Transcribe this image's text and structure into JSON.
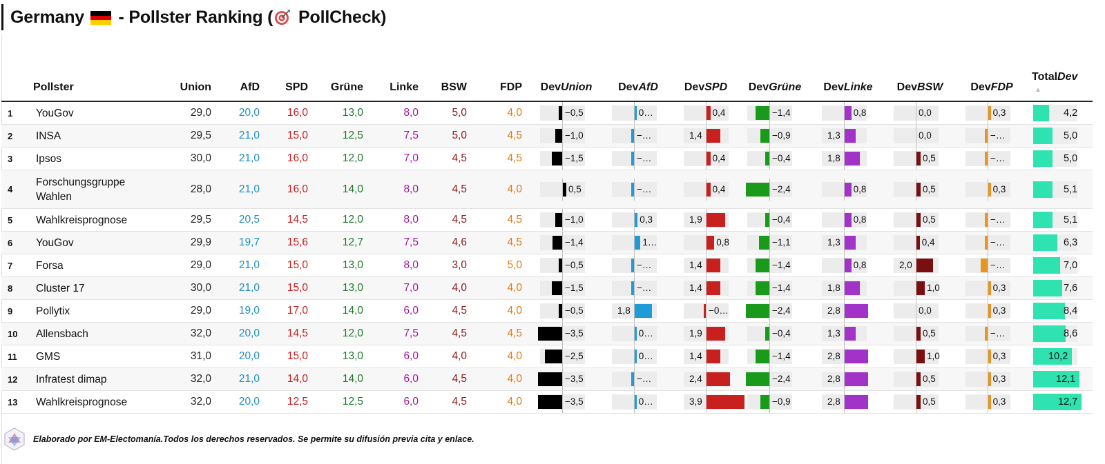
{
  "title": {
    "before": "Germany ",
    "after": " - Pollster Ranking (",
    "brand": " PollCheck)"
  },
  "columns": {
    "pollster": "Pollster",
    "parties": [
      "Union",
      "AfD",
      "SPD",
      "Grüne",
      "Linke",
      "BSW",
      "FDP"
    ],
    "dev_prefix": "Dev",
    "total": "TotalDev",
    "sort_indicator": "▲"
  },
  "colors": {
    "Union": "#000000",
    "AfD": "#1f9bd7",
    "SPD": "#c8201f",
    "Grüne": "#1a9a1a",
    "Linke": "#a233c8",
    "BSW": "#7a0f12",
    "FDP": "#e89421",
    "total": "#2fe3b0",
    "text_Union": "#222222",
    "text_AfD": "#1f8fc4",
    "text_SPD": "#c8201f",
    "text_Grüne": "#1e7a2c",
    "text_Linke": "#a0179f",
    "text_BSW": "#8b1a1a",
    "text_FDP": "#e07a10"
  },
  "rows": [
    {
      "rank": "1",
      "name": "YouGov",
      "values": [
        "29,0",
        "20,0",
        "16,0",
        "13,0",
        "8,0",
        "5,0",
        "4,0"
      ],
      "devs": [
        -0.5,
        0.2,
        0.4,
        -1.4,
        0.8,
        0.0,
        0.3
      ],
      "dev_labels": [
        "−0,5",
        "0…",
        "0,4",
        "−1,4",
        "0,8",
        "0,0",
        "0,3"
      ],
      "total": 4.2,
      "total_label": "4,2"
    },
    {
      "rank": "2",
      "name": "INSA",
      "values": [
        "29,5",
        "21,0",
        "15,0",
        "12,5",
        "7,5",
        "5,0",
        "4,5"
      ],
      "devs": [
        -1.0,
        -0.3,
        1.4,
        -0.9,
        1.3,
        0.0,
        -0.3
      ],
      "dev_labels": [
        "−1,0",
        "−…",
        "1,4",
        "−0,9",
        "1,3",
        "0,0",
        "−…"
      ],
      "total": 5.0,
      "total_label": "5,0"
    },
    {
      "rank": "3",
      "name": "Ipsos",
      "values": [
        "30,0",
        "21,0",
        "16,0",
        "12,0",
        "7,0",
        "4,5",
        "4,5"
      ],
      "devs": [
        -1.5,
        -0.3,
        0.4,
        -0.4,
        1.8,
        0.5,
        -0.3
      ],
      "dev_labels": [
        "−1,5",
        "−…",
        "0,4",
        "−0,4",
        "1,8",
        "0,5",
        "−…"
      ],
      "total": 5.0,
      "total_label": "5,0"
    },
    {
      "rank": "4",
      "name": "Forschungsgruppe Wahlen",
      "values": [
        "28,0",
        "21,0",
        "16,0",
        "14,0",
        "8,0",
        "4,5",
        "4,0"
      ],
      "devs": [
        0.5,
        -0.3,
        0.4,
        -2.4,
        0.8,
        0.5,
        0.3
      ],
      "dev_labels": [
        "0,5",
        "−…",
        "0,4",
        "−2,4",
        "0,8",
        "0,5",
        "0,3"
      ],
      "total": 5.1,
      "total_label": "5,1"
    },
    {
      "rank": "5",
      "name": "Wahlkreisprognose",
      "values": [
        "29,5",
        "20,5",
        "14,5",
        "12,0",
        "8,0",
        "4,5",
        "4,5"
      ],
      "devs": [
        -1.0,
        0.3,
        1.9,
        -0.4,
        0.8,
        0.5,
        -0.3
      ],
      "dev_labels": [
        "−1,0",
        "0,3",
        "1,9",
        "−0,4",
        "0,8",
        "0,5",
        "−…"
      ],
      "total": 5.1,
      "total_label": "5,1"
    },
    {
      "rank": "6",
      "name": "YouGov",
      "values": [
        "29,9",
        "19,7",
        "15,6",
        "12,7",
        "7,5",
        "4,6",
        "4,5"
      ],
      "devs": [
        -1.4,
        0.6,
        0.8,
        -1.1,
        1.3,
        0.4,
        -0.3
      ],
      "dev_labels": [
        "−1,4",
        "1…",
        "0,8",
        "−1,1",
        "1,3",
        "0,4",
        "−…"
      ],
      "total": 6.3,
      "total_label": "6,3"
    },
    {
      "rank": "7",
      "name": "Forsa",
      "values": [
        "29,0",
        "21,0",
        "15,0",
        "13,0",
        "8,0",
        "3,0",
        "5,0"
      ],
      "devs": [
        -0.5,
        -0.3,
        1.4,
        -1.4,
        0.8,
        2.0,
        -0.8
      ],
      "dev_labels": [
        "−0,5",
        "−…",
        "1,4",
        "−1,4",
        "0,8",
        "2,0",
        "−…"
      ],
      "total": 7.0,
      "total_label": "7,0"
    },
    {
      "rank": "8",
      "name": "Cluster 17",
      "values": [
        "30,0",
        "21,0",
        "15,0",
        "13,0",
        "7,0",
        "4,0",
        "4,0"
      ],
      "devs": [
        -1.5,
        -0.3,
        1.4,
        -1.4,
        1.8,
        1.0,
        0.3
      ],
      "dev_labels": [
        "−1,5",
        "−…",
        "1,4",
        "−1,4",
        "1,8",
        "1,0",
        "0,3"
      ],
      "total": 7.6,
      "total_label": "7,6"
    },
    {
      "rank": "9",
      "name": "Pollytix",
      "values": [
        "29,0",
        "19,0",
        "17,0",
        "14,0",
        "6,0",
        "4,5",
        "4,0"
      ],
      "devs": [
        -0.5,
        1.8,
        -0.2,
        -2.4,
        2.8,
        0.0,
        0.3
      ],
      "dev_labels": [
        "−0,5",
        "1,8",
        "−0…",
        "−2,4",
        "2,8",
        "0,0",
        "0,3"
      ],
      "total": 8.4,
      "total_label": "8,4"
    },
    {
      "rank": "10",
      "name": "Allensbach",
      "values": [
        "32,0",
        "20,0",
        "14,5",
        "12,0",
        "7,5",
        "4,5",
        "4,5"
      ],
      "devs": [
        -3.5,
        0.2,
        1.9,
        -0.4,
        1.3,
        0.5,
        -0.3
      ],
      "dev_labels": [
        "−3,5",
        "0…",
        "1,9",
        "−0,4",
        "1,3",
        "0,5",
        "−…"
      ],
      "total": 8.6,
      "total_label": "8,6"
    },
    {
      "rank": "11",
      "name": "GMS",
      "values": [
        "31,0",
        "20,0",
        "15,0",
        "13,0",
        "6,0",
        "4,0",
        "4,0"
      ],
      "devs": [
        -2.5,
        0.2,
        1.4,
        -1.4,
        2.8,
        1.0,
        0.3
      ],
      "dev_labels": [
        "−2,5",
        "0…",
        "1,4",
        "−1,4",
        "2,8",
        "1,0",
        "0,3"
      ],
      "total": 10.2,
      "total_label": "10,2"
    },
    {
      "rank": "12",
      "name": "Infratest dimap",
      "values": [
        "32,0",
        "21,0",
        "14,0",
        "14,0",
        "6,0",
        "4,5",
        "4,0"
      ],
      "devs": [
        -3.5,
        -0.3,
        2.4,
        -2.4,
        2.8,
        0.5,
        0.3
      ],
      "dev_labels": [
        "−3,5",
        "−…",
        "2,4",
        "−2,4",
        "2,8",
        "0,5",
        "0,3"
      ],
      "total": 12.1,
      "total_label": "12,1"
    },
    {
      "rank": "13",
      "name": "Wahlkreisprognose",
      "values": [
        "32,0",
        "20,0",
        "12,5",
        "12,5",
        "6,0",
        "4,5",
        "4,0"
      ],
      "devs": [
        -3.5,
        0.2,
        3.9,
        -0.9,
        2.8,
        0.5,
        0.3
      ],
      "dev_labels": [
        "−3,5",
        "0…",
        "3,9",
        "−0,9",
        "2,8",
        "0,5",
        "0,3"
      ],
      "total": 12.7,
      "total_label": "12,7"
    }
  ],
  "footer": "Elaborado por EM-Electomanía.Todos los derechos reservados. Se permite su difusión previa cita y enlace.",
  "chart_data": {
    "type": "table",
    "title": "Germany - Pollster Ranking (PollCheck)",
    "columns": [
      "Pollster",
      "Union",
      "AfD",
      "SPD",
      "Grüne",
      "Linke",
      "BSW",
      "FDP",
      "DevUnion",
      "DevAfD",
      "DevSPD",
      "DevGrüne",
      "DevLinke",
      "DevBSW",
      "DevFDP",
      "TotalDev"
    ],
    "sort": "TotalDev ascending"
  }
}
